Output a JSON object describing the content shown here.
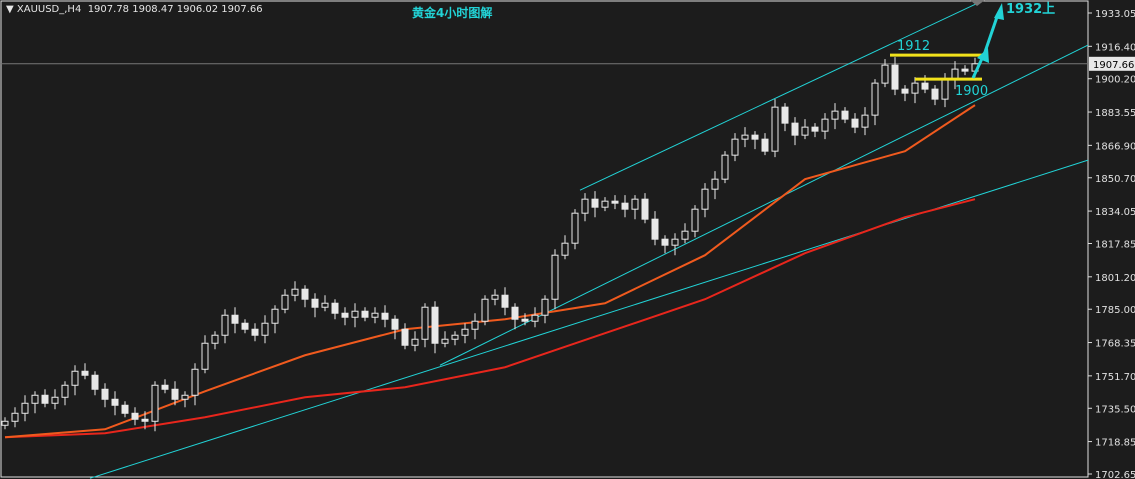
{
  "header": {
    "symbol": "XAUUSD_,H4",
    "ohlc": "1907.78 1908.47 1906.02 1907.66"
  },
  "chart_data": {
    "type": "candlestick",
    "title": "黄金4小时图解",
    "ylim": [
      1702.65,
      1933.05
    ],
    "y_ticks": [
      "1933.05",
      "1916.40",
      "1900.20",
      "1883.55",
      "1866.90",
      "1850.70",
      "1834.05",
      "1817.85",
      "1801.20",
      "1785.00",
      "1768.35",
      "1751.70",
      "1735.50",
      "1718.85",
      "1702.65"
    ],
    "current_price": "1907.66",
    "close": [
      1729,
      1733,
      1738,
      1742,
      1738,
      1741,
      1747,
      1754,
      1752,
      1745,
      1740,
      1737,
      1733,
      1730,
      1729,
      1747,
      1745,
      1740,
      1742,
      1755,
      1768,
      1772,
      1782,
      1778,
      1775,
      1772,
      1778,
      1785,
      1792,
      1795,
      1790,
      1786,
      1788,
      1783,
      1781,
      1784,
      1781,
      1783,
      1780,
      1775,
      1767,
      1770,
      1786,
      1768,
      1770,
      1772,
      1775,
      1779,
      1790,
      1792,
      1786,
      1780,
      1779,
      1782,
      1790,
      1812,
      1818,
      1833,
      1840,
      1836,
      1839,
      1838,
      1835,
      1840,
      1830,
      1820,
      1817,
      1820,
      1824,
      1835,
      1845,
      1850,
      1862,
      1870,
      1872,
      1870,
      1864,
      1886,
      1878,
      1872,
      1876,
      1874,
      1880,
      1884,
      1880,
      1876,
      1882,
      1898,
      1907,
      1895,
      1893,
      1898,
      1895,
      1890,
      1900,
      1905,
      1904,
      1907.66
    ],
    "moving_averages": [
      {
        "color": "#e8261c",
        "bars": [
          0,
          10,
          20,
          30,
          40,
          50,
          60,
          70,
          80,
          90,
          97
        ],
        "values": [
          1721,
          1723,
          1731,
          1741,
          1746,
          1756,
          1773,
          1790,
          1813,
          1831,
          1840
        ]
      },
      {
        "color": "#f05a1e",
        "bars": [
          0,
          10,
          20,
          30,
          40,
          50,
          60,
          70,
          80,
          90,
          97
        ],
        "values": [
          1721,
          1725,
          1744,
          1762,
          1775,
          1780,
          1788,
          1812,
          1850,
          1864,
          1887
        ]
      }
    ],
    "trend_lines": [
      {
        "color": "#22d3d6",
        "from": [
          57.5,
          1844.5
        ],
        "to": [
          97.5,
          1938.5
        ]
      },
      {
        "color": "#22d3d6",
        "from": [
          43.5,
          1757
        ],
        "to": [
          108.3,
          1917
        ]
      },
      {
        "color": "#22d3d6",
        "from": [
          8.5,
          1700.5
        ],
        "to": [
          108.3,
          1859.5
        ]
      }
    ],
    "levels": [
      {
        "label": "1912",
        "price": 1912,
        "color": "#f2e21b"
      },
      {
        "label": "1900",
        "price": 1900,
        "color": "#f2e21b"
      }
    ],
    "target": {
      "label": "1932上",
      "price": 1932,
      "color": "#22d3d6"
    }
  }
}
